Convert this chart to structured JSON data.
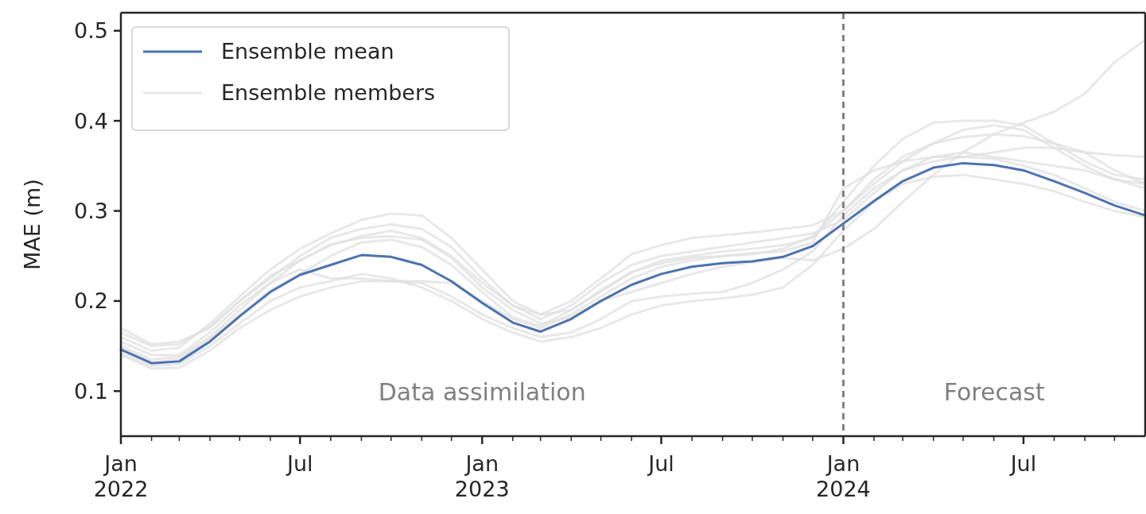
{
  "chart_data": {
    "type": "line",
    "ylabel": "MAE (m)",
    "x": [
      "2022-01",
      "2022-02",
      "2022-03",
      "2022-04",
      "2022-05",
      "2022-06",
      "2022-07",
      "2022-08",
      "2022-09",
      "2022-10",
      "2022-11",
      "2022-12",
      "2023-01",
      "2023-02",
      "2023-03",
      "2023-04",
      "2023-05",
      "2023-06",
      "2023-07",
      "2023-08",
      "2023-09",
      "2023-10",
      "2023-11",
      "2023-12",
      "2024-01",
      "2024-02",
      "2024-03",
      "2024-04",
      "2024-05",
      "2024-06",
      "2024-07",
      "2024-08",
      "2024-09",
      "2024-10",
      "2024-11"
    ],
    "series": [
      {
        "name": "Ensemble mean",
        "color": "#4c72b0",
        "values": [
          0.146,
          0.131,
          0.133,
          0.155,
          0.183,
          0.21,
          0.229,
          0.24,
          0.251,
          0.249,
          0.24,
          0.222,
          0.198,
          0.176,
          0.166,
          0.18,
          0.2,
          0.218,
          0.23,
          0.238,
          0.242,
          0.244,
          0.249,
          0.261,
          0.286,
          0.311,
          0.333,
          0.348,
          0.353,
          0.351,
          0.345,
          0.333,
          0.32,
          0.306,
          0.295
        ]
      },
      {
        "name": "Ensemble members",
        "color": "#e0e0e0",
        "values": [
          0.16,
          0.145,
          0.148,
          0.175,
          0.205,
          0.235,
          0.258,
          0.275,
          0.29,
          0.297,
          0.295,
          0.27,
          0.235,
          0.2,
          0.185,
          0.2,
          0.225,
          0.252,
          0.262,
          0.27,
          0.273,
          0.276,
          0.28,
          0.284,
          0.3,
          0.335,
          0.36,
          0.375,
          0.382,
          0.385,
          0.383,
          0.375,
          0.365,
          0.362,
          0.36
        ]
      },
      {
        "color": "#e0e0e0",
        "values": [
          0.15,
          0.135,
          0.138,
          0.16,
          0.19,
          0.22,
          0.245,
          0.263,
          0.27,
          0.272,
          0.268,
          0.248,
          0.215,
          0.19,
          0.175,
          0.182,
          0.2,
          0.21,
          0.22,
          0.23,
          0.238,
          0.243,
          0.248,
          0.245,
          0.258,
          0.28,
          0.31,
          0.34,
          0.365,
          0.385,
          0.398,
          0.41,
          0.43,
          0.465,
          0.49
        ]
      },
      {
        "color": "#e0e0e0",
        "values": [
          0.14,
          0.125,
          0.126,
          0.145,
          0.17,
          0.19,
          0.205,
          0.215,
          0.222,
          0.222,
          0.22,
          0.205,
          0.185,
          0.17,
          0.16,
          0.165,
          0.18,
          0.2,
          0.205,
          0.208,
          0.21,
          0.22,
          0.235,
          0.255,
          0.295,
          0.325,
          0.345,
          0.355,
          0.36,
          0.358,
          0.35,
          0.34,
          0.325,
          0.31,
          0.3
        ]
      },
      {
        "color": "#e0e0e0",
        "values": [
          0.165,
          0.15,
          0.152,
          0.172,
          0.2,
          0.228,
          0.245,
          0.262,
          0.272,
          0.278,
          0.27,
          0.25,
          0.22,
          0.195,
          0.185,
          0.19,
          0.21,
          0.232,
          0.245,
          0.25,
          0.255,
          0.258,
          0.262,
          0.27,
          0.31,
          0.35,
          0.38,
          0.398,
          0.4,
          0.4,
          0.395,
          0.375,
          0.355,
          0.34,
          0.335
        ]
      },
      {
        "color": "#e0e0e0",
        "values": [
          0.155,
          0.14,
          0.14,
          0.165,
          0.195,
          0.22,
          0.235,
          0.225,
          0.225,
          0.222,
          0.222,
          0.22,
          0.2,
          0.18,
          0.17,
          0.185,
          0.205,
          0.225,
          0.238,
          0.245,
          0.25,
          0.253,
          0.255,
          0.265,
          0.325,
          0.345,
          0.355,
          0.36,
          0.36,
          0.365,
          0.37,
          0.37,
          0.365,
          0.345,
          0.33
        ]
      },
      {
        "color": "#e0e0e0",
        "values": [
          0.148,
          0.132,
          0.135,
          0.158,
          0.185,
          0.212,
          0.23,
          0.25,
          0.265,
          0.268,
          0.26,
          0.24,
          0.21,
          0.182,
          0.172,
          0.19,
          0.212,
          0.232,
          0.242,
          0.248,
          0.25,
          0.252,
          0.258,
          0.272,
          0.3,
          0.33,
          0.355,
          0.375,
          0.39,
          0.395,
          0.39,
          0.37,
          0.35,
          0.335,
          0.325
        ]
      },
      {
        "color": "#e0e0e0",
        "values": [
          0.142,
          0.128,
          0.13,
          0.15,
          0.175,
          0.2,
          0.215,
          0.222,
          0.23,
          0.225,
          0.215,
          0.2,
          0.18,
          0.165,
          0.155,
          0.16,
          0.17,
          0.185,
          0.195,
          0.2,
          0.203,
          0.207,
          0.215,
          0.24,
          0.278,
          0.31,
          0.33,
          0.338,
          0.34,
          0.335,
          0.33,
          0.322,
          0.31,
          0.3,
          0.293
        ]
      },
      {
        "color": "#e0e0e0",
        "values": [
          0.17,
          0.152,
          0.155,
          0.17,
          0.2,
          0.225,
          0.25,
          0.27,
          0.28,
          0.285,
          0.28,
          0.26,
          0.225,
          0.195,
          0.18,
          0.195,
          0.22,
          0.24,
          0.25,
          0.255,
          0.26,
          0.265,
          0.27,
          0.275,
          0.29,
          0.32,
          0.345,
          0.36,
          0.365,
          0.36,
          0.355,
          0.35,
          0.345,
          0.335,
          0.33
        ]
      }
    ],
    "xlim": [
      "2022-01-01",
      "2024-11-01"
    ],
    "xticks": [
      {
        "value": "2022-01",
        "label": "Jan\n2022"
      },
      {
        "value": "2022-02",
        "label": null
      },
      {
        "value": "2022-03",
        "label": null
      },
      {
        "value": "2022-04",
        "label": null
      },
      {
        "value": "2022-05",
        "label": null
      },
      {
        "value": "2022-06",
        "label": null
      },
      {
        "value": "2022-07",
        "label": "Jul"
      },
      {
        "value": "2022-08",
        "label": null
      },
      {
        "value": "2022-09",
        "label": null
      },
      {
        "value": "2022-10",
        "label": null
      },
      {
        "value": "2022-11",
        "label": null
      },
      {
        "value": "2022-12",
        "label": null
      },
      {
        "value": "2023-01",
        "label": "Jan\n2023"
      },
      {
        "value": "2023-02",
        "label": null
      },
      {
        "value": "2023-03",
        "label": null
      },
      {
        "value": "2023-04",
        "label": null
      },
      {
        "value": "2023-05",
        "label": null
      },
      {
        "value": "2023-06",
        "label": null
      },
      {
        "value": "2023-07",
        "label": "Jul"
      },
      {
        "value": "2023-08",
        "label": null
      },
      {
        "value": "2023-09",
        "label": null
      },
      {
        "value": "2023-10",
        "label": null
      },
      {
        "value": "2023-11",
        "label": null
      },
      {
        "value": "2023-12",
        "label": null
      },
      {
        "value": "2024-01",
        "label": "Jan\n2024"
      },
      {
        "value": "2024-02",
        "label": null
      },
      {
        "value": "2024-03",
        "label": null
      },
      {
        "value": "2024-04",
        "label": null
      },
      {
        "value": "2024-05",
        "label": null
      },
      {
        "value": "2024-06",
        "label": null
      },
      {
        "value": "2024-07",
        "label": "Jul"
      },
      {
        "value": "2024-08",
        "label": null
      },
      {
        "value": "2024-09",
        "label": null
      },
      {
        "value": "2024-10",
        "label": null
      }
    ],
    "ylim": [
      0.05,
      0.52
    ],
    "yticks": [
      0.1,
      0.2,
      0.3,
      0.4,
      0.5
    ],
    "ref_lines": [
      {
        "axis": "x",
        "value": "2024-01",
        "color": "#808080",
        "line_style": "dashed"
      }
    ],
    "annotations": [
      "Data assimilation",
      "Forecast"
    ],
    "legend": "top left",
    "grid": false,
    "line_style": "solid"
  }
}
